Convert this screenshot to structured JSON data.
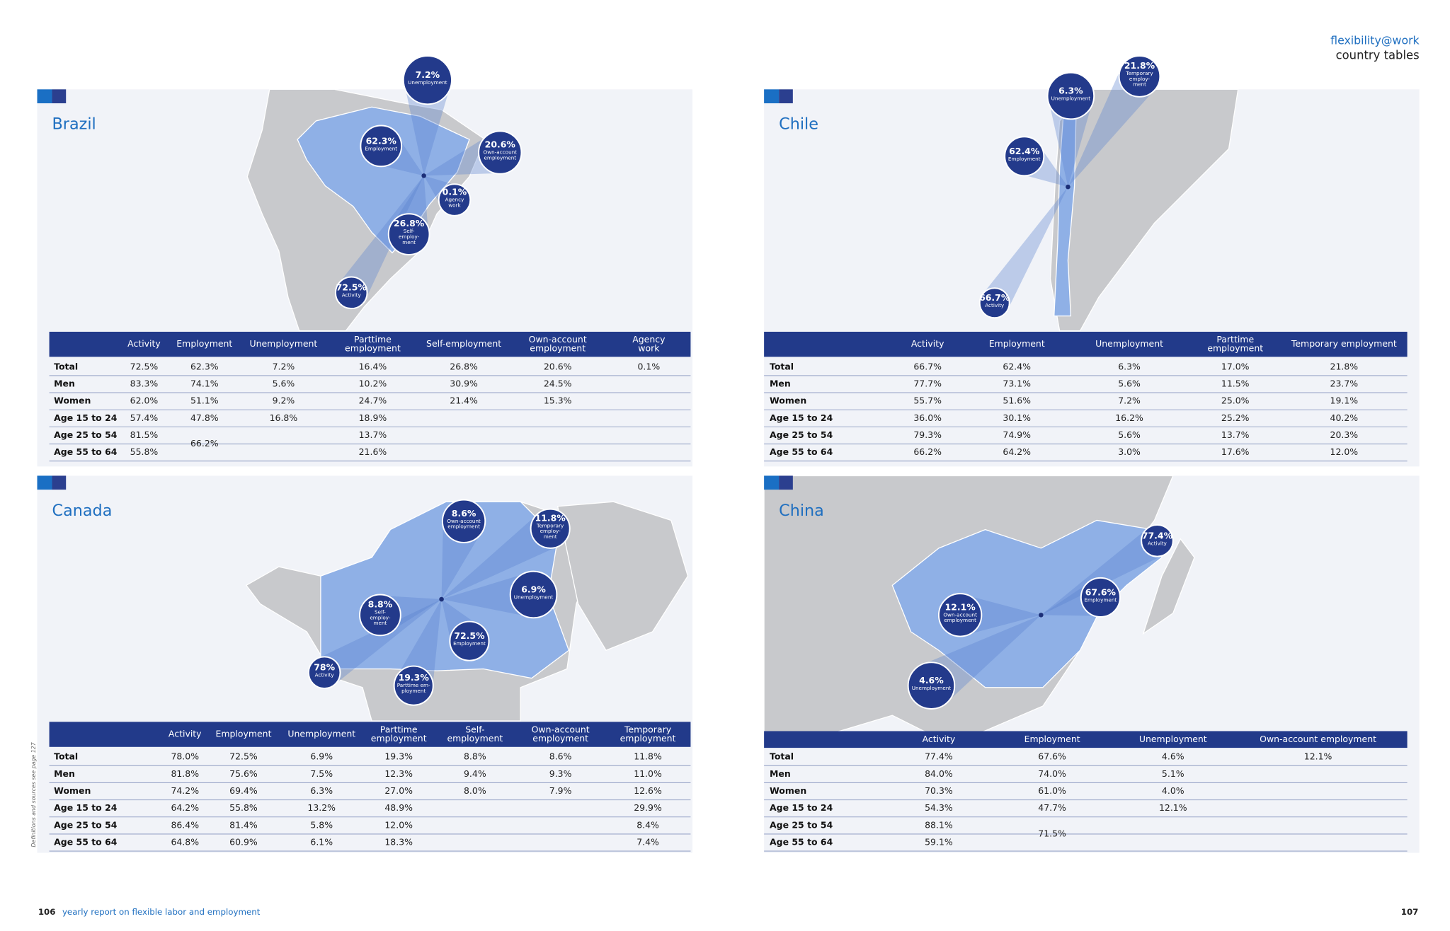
{
  "header": {
    "brand": "flexibility@work",
    "section": "country tables"
  },
  "footer": {
    "left_page": "106",
    "left_text": "yearly report on flexible labor and employment",
    "right_page": "107"
  },
  "side_note": "Definitions and sources see page 127",
  "countries": [
    {
      "name": "Brazil",
      "bubbles": [
        {
          "value": "7.2%",
          "caption": [
            "Unemployment"
          ]
        },
        {
          "value": "62.3%",
          "caption": [
            "Employment"
          ]
        },
        {
          "value": "20.6%",
          "caption": [
            "Own-account",
            "employment"
          ]
        },
        {
          "value": "0.1%",
          "caption": [
            "Agency",
            "work"
          ]
        },
        {
          "value": "26.8%",
          "caption": [
            "Self-",
            "employ-",
            "ment"
          ]
        },
        {
          "value": "72.5%",
          "caption": [
            "Activity"
          ]
        }
      ],
      "table": {
        "columns": [
          [
            "Activity"
          ],
          [
            "Employment"
          ],
          [
            "Unemployment"
          ],
          [
            "Parttime",
            "employment"
          ],
          [
            "Self-employment"
          ],
          [
            "Own-account",
            "employment"
          ],
          [
            "Agency",
            "work"
          ]
        ],
        "rows": [
          {
            "label": "Total",
            "cells": [
              "72.5%",
              "62.3%",
              "7.2%",
              "16.4%",
              "26.8%",
              "20.6%",
              "0.1%"
            ]
          },
          {
            "label": "Men",
            "cells": [
              "83.3%",
              "74.1%",
              "5.6%",
              "10.2%",
              "30.9%",
              "24.5%",
              null
            ]
          },
          {
            "label": "Women",
            "cells": [
              "62.0%",
              "51.1%",
              "9.2%",
              "24.7%",
              "21.4%",
              "15.3%",
              null
            ]
          },
          {
            "label": "Age 15 to 24",
            "cells": [
              "57.4%",
              "47.8%",
              "16.8%",
              "18.9%",
              null,
              null,
              null
            ]
          },
          {
            "label": "Age 25 to 54",
            "cells": [
              "81.5%",
              {
                "text": "66.2%",
                "rowspan": 2
              },
              null,
              "13.7%",
              null,
              null,
              null
            ]
          },
          {
            "label": "Age 55 to 64",
            "cells": [
              "55.8%",
              null,
              null,
              "21.6%",
              null,
              null,
              null
            ]
          }
        ]
      }
    },
    {
      "name": "Chile",
      "bubbles": [
        {
          "value": "21.8%",
          "caption": [
            "Temporary",
            "employ-",
            "ment"
          ]
        },
        {
          "value": "6.3%",
          "caption": [
            "Unemployment"
          ]
        },
        {
          "value": "62.4%",
          "caption": [
            "Employment"
          ]
        },
        {
          "value": "66.7%",
          "caption": [
            "Activity"
          ]
        }
      ],
      "table": {
        "columns": [
          [
            "Activity"
          ],
          [
            "Employment"
          ],
          [
            "Unemployment"
          ],
          [
            "Parttime",
            "employment"
          ],
          [
            "Temporary employment"
          ]
        ],
        "rows": [
          {
            "label": "Total",
            "cells": [
              "66.7%",
              "62.4%",
              "6.3%",
              "17.0%",
              "21.8%"
            ]
          },
          {
            "label": "Men",
            "cells": [
              "77.7%",
              "73.1%",
              "5.6%",
              "11.5%",
              "23.7%"
            ]
          },
          {
            "label": "Women",
            "cells": [
              "55.7%",
              "51.6%",
              "7.2%",
              "25.0%",
              "19.1%"
            ]
          },
          {
            "label": "Age 15 to 24",
            "cells": [
              "36.0%",
              "30.1%",
              "16.2%",
              "25.2%",
              "40.2%"
            ]
          },
          {
            "label": "Age 25 to 54",
            "cells": [
              "79.3%",
              "74.9%",
              "5.6%",
              "13.7%",
              "20.3%"
            ]
          },
          {
            "label": "Age 55 to 64",
            "cells": [
              "66.2%",
              "64.2%",
              "3.0%",
              "17.6%",
              "12.0%"
            ]
          }
        ]
      }
    },
    {
      "name": "Canada",
      "bubbles": [
        {
          "value": "8.6%",
          "caption": [
            "Own-account",
            "employment"
          ]
        },
        {
          "value": "11.8%",
          "caption": [
            "Temporary",
            "employ-",
            "ment"
          ]
        },
        {
          "value": "6.9%",
          "caption": [
            "Unemployment"
          ]
        },
        {
          "value": "8.8%",
          "caption": [
            "Self-",
            "employ-",
            "ment"
          ]
        },
        {
          "value": "72.5%",
          "caption": [
            "Employment"
          ]
        },
        {
          "value": "78%",
          "caption": [
            "Activity"
          ]
        },
        {
          "value": "19.3%",
          "caption": [
            "Parttime em-",
            "ployment"
          ]
        }
      ],
      "table": {
        "columns": [
          [
            "Activity"
          ],
          [
            "Employment"
          ],
          [
            "Unemployment"
          ],
          [
            "Parttime",
            "employment"
          ],
          [
            "Self-",
            "employment"
          ],
          [
            "Own-account",
            "employment"
          ],
          [
            "Temporary",
            "employment"
          ]
        ],
        "rows": [
          {
            "label": "Total",
            "cells": [
              "78.0%",
              "72.5%",
              "6.9%",
              "19.3%",
              "8.8%",
              "8.6%",
              "11.8%"
            ]
          },
          {
            "label": "Men",
            "cells": [
              "81.8%",
              "75.6%",
              "7.5%",
              "12.3%",
              "9.4%",
              "9.3%",
              "11.0%"
            ]
          },
          {
            "label": "Women",
            "cells": [
              "74.2%",
              "69.4%",
              "6.3%",
              "27.0%",
              "8.0%",
              "7.9%",
              "12.6%"
            ]
          },
          {
            "label": "Age 15 to 24",
            "cells": [
              "64.2%",
              "55.8%",
              "13.2%",
              "48.9%",
              null,
              null,
              "29.9%"
            ]
          },
          {
            "label": "Age 25 to 54",
            "cells": [
              "86.4%",
              "81.4%",
              "5.8%",
              "12.0%",
              null,
              null,
              "8.4%"
            ]
          },
          {
            "label": "Age 55 to 64",
            "cells": [
              "64.8%",
              "60.9%",
              "6.1%",
              "18.3%",
              null,
              null,
              "7.4%"
            ]
          }
        ]
      }
    },
    {
      "name": "China",
      "bubbles": [
        {
          "value": "77.4%",
          "caption": [
            "Activity"
          ]
        },
        {
          "value": "67.6%",
          "caption": [
            "Employment"
          ]
        },
        {
          "value": "12.1%",
          "caption": [
            "Own-account",
            "employment"
          ]
        },
        {
          "value": "4.6%",
          "caption": [
            "Unemployment"
          ]
        }
      ],
      "table": {
        "columns": [
          [
            "Activity"
          ],
          [
            "Employment"
          ],
          [
            "Unemployment"
          ],
          [
            "Own-account employment"
          ]
        ],
        "rows": [
          {
            "label": "Total",
            "cells": [
              "77.4%",
              "67.6%",
              "4.6%",
              "12.1%"
            ]
          },
          {
            "label": "Men",
            "cells": [
              "84.0%",
              "74.0%",
              "5.1%",
              null
            ]
          },
          {
            "label": "Women",
            "cells": [
              "70.3%",
              "61.0%",
              "4.0%",
              null
            ]
          },
          {
            "label": "Age 15 to 24",
            "cells": [
              "54.3%",
              "47.7%",
              "12.1%",
              null
            ]
          },
          {
            "label": "Age 25 to 54",
            "cells": [
              "88.1%",
              {
                "text": "71.5%",
                "rowspan": 2
              },
              null,
              null
            ]
          },
          {
            "label": "Age 55 to 64",
            "cells": [
              "59.1%",
              null,
              null,
              null
            ]
          }
        ]
      }
    }
  ]
}
